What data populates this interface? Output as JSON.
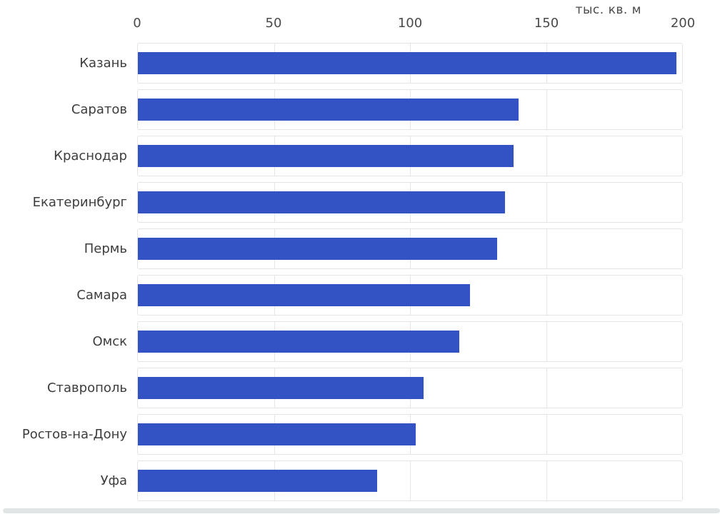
{
  "chart_data": {
    "type": "bar",
    "orientation": "horizontal",
    "axis_title": "тыс. кв. м",
    "categories": [
      "Казань",
      "Саратов",
      "Краснодар",
      "Екатеринбург",
      "Пермь",
      "Самара",
      "Омск",
      "Ставрополь",
      "Ростов-на-Дону",
      "Уфа"
    ],
    "values": [
      198,
      140,
      138,
      135,
      132,
      122,
      118,
      105,
      102,
      88
    ],
    "x_ticks": [
      0,
      50,
      100,
      150,
      200
    ],
    "xlim": [
      0,
      200
    ],
    "grid": true,
    "legend": false,
    "axis_position": "top",
    "colors": {
      "bar": "#3352c4",
      "grid": "#e6e6e6",
      "band_border": "#e4e4e4",
      "tick_text": "#4a4a4a",
      "label_text": "#3d3d3d"
    }
  }
}
